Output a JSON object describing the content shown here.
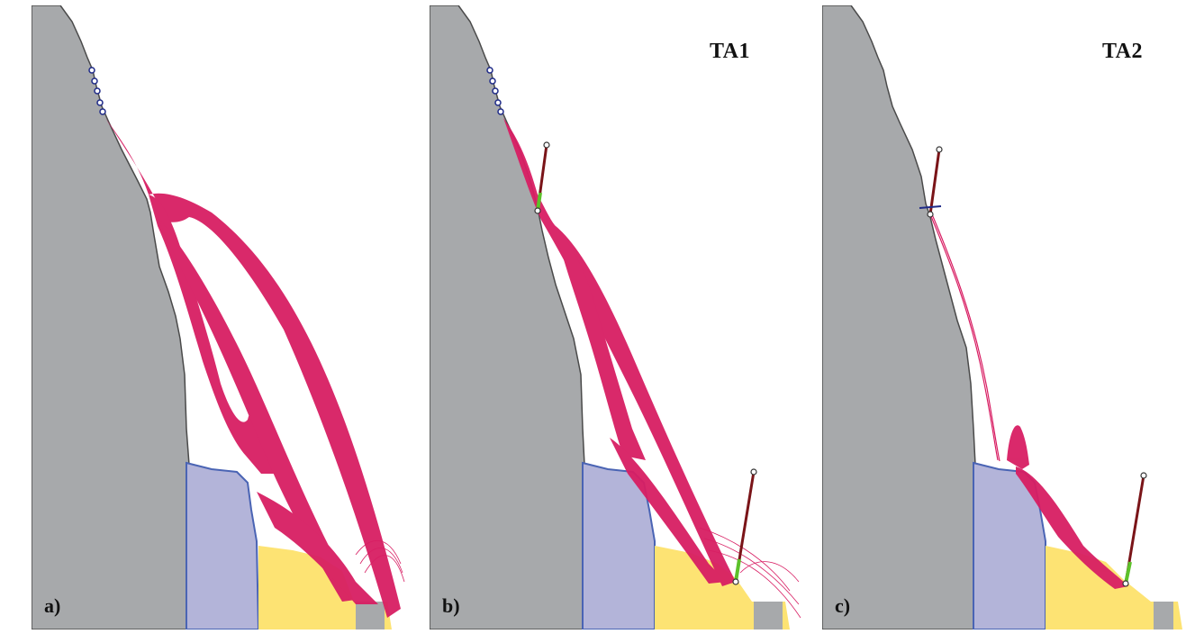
{
  "colors": {
    "cliff": "#a7a9ab",
    "cliff_edge": "#4a4a4a",
    "deposit_blue": "#b3b4d9",
    "deposit_blue_edge": "#4a64b4",
    "deposit_yellow": "#fde373",
    "trajectory": "#d81e63",
    "barrier_post": "#7a1418",
    "barrier_net": "#5cc12a",
    "release_point": "#1e2a88"
  },
  "panels": [
    {
      "letter": "a)",
      "title": "",
      "barriers": 0
    },
    {
      "letter": "b)",
      "title": "TA1",
      "barriers": 2
    },
    {
      "letter": "c)",
      "title": "TA2",
      "barriers": 2
    }
  ],
  "icons": {
    "node": "circle-node-icon"
  }
}
